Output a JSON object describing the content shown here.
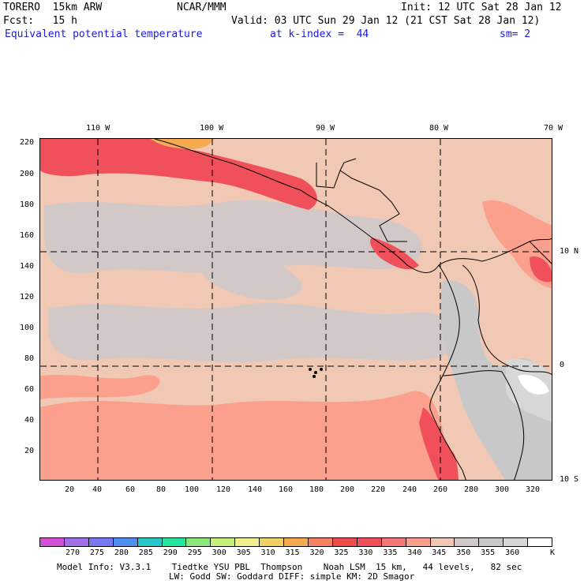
{
  "header": {
    "model": "TORERO  15km ARW",
    "org": "NCAR/MMM",
    "init": "Init: 12 UTC Sat 28 Jan 12",
    "fcst": "Fcst:   15 h",
    "valid": "Valid: 03 UTC Sun 29 Jan 12 (21 CST Sat 28 Jan 12)",
    "field": "Equivalent potential temperature",
    "level": "at k-index =  44",
    "smooth": "sm= 2"
  },
  "map": {
    "lon_labels": [
      "110 W",
      "100 W",
      "90 W",
      "80 W",
      "70 W"
    ],
    "lat_labels": [
      "10 N",
      "0",
      "10 S"
    ],
    "y_ticks": [
      "220",
      "200",
      "180",
      "160",
      "140",
      "120",
      "100",
      "80",
      "60",
      "40",
      "20"
    ],
    "x_ticks": [
      "20",
      "40",
      "60",
      "80",
      "100",
      "120",
      "140",
      "160",
      "180",
      "200",
      "220",
      "240",
      "260",
      "280",
      "300",
      "320"
    ]
  },
  "colorbar": {
    "colors": [
      "#d24fd6",
      "#a070e6",
      "#7878f0",
      "#4f8ff0",
      "#28c8c8",
      "#28e6a0",
      "#8ae678",
      "#c8f078",
      "#f0f08c",
      "#f0d264",
      "#f5aa50",
      "#f58264",
      "#f04b4b",
      "#f0505a",
      "#f57878",
      "#faa08c",
      "#f0c8b4",
      "#d2c8c8",
      "#c8c8c8",
      "#d7d7d7",
      "#ffffff"
    ],
    "labels": [
      "270",
      "275",
      "280",
      "285",
      "290",
      "295",
      "300",
      "305",
      "310",
      "315",
      "320",
      "325",
      "330",
      "335",
      "340",
      "345",
      "350",
      "355",
      "360"
    ],
    "unit": "K"
  },
  "footer": {
    "line1": "Model Info: V3.3.1    Tiedtke YSU PBL  Thompson    Noah LSM  15 km,   44 levels,   82 sec",
    "line2": "LW: Godd SW: Goddard DIFF: simple KM: 2D Smagor"
  }
}
